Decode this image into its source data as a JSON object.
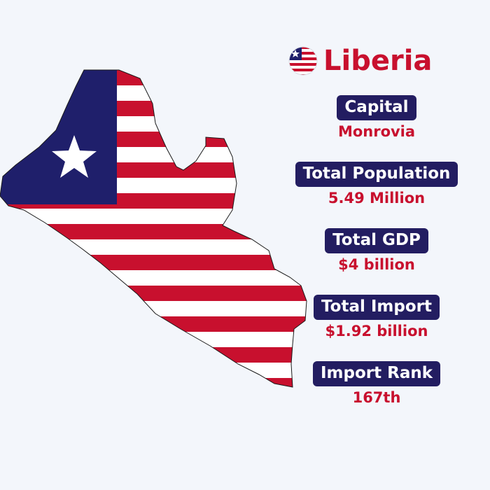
{
  "country": {
    "name": "Liberia",
    "flag_icon": "liberia-flag-icon",
    "map_image": "liberia-flag-map"
  },
  "stats": [
    {
      "label": "Capital",
      "value": "Monrovia"
    },
    {
      "label": "Total Population",
      "value": "5.49 Million"
    },
    {
      "label": "Total GDP",
      "value": "$4 billion"
    },
    {
      "label": "Total Import",
      "value": "$1.92 billion"
    },
    {
      "label": "Import Rank",
      "value": "167th"
    }
  ],
  "colors": {
    "background": "#f3f6fb",
    "accent_red": "#c8102e",
    "label_navy": "#231d61",
    "flag_blue": "#1f1f6b",
    "flag_white": "#ffffff"
  }
}
